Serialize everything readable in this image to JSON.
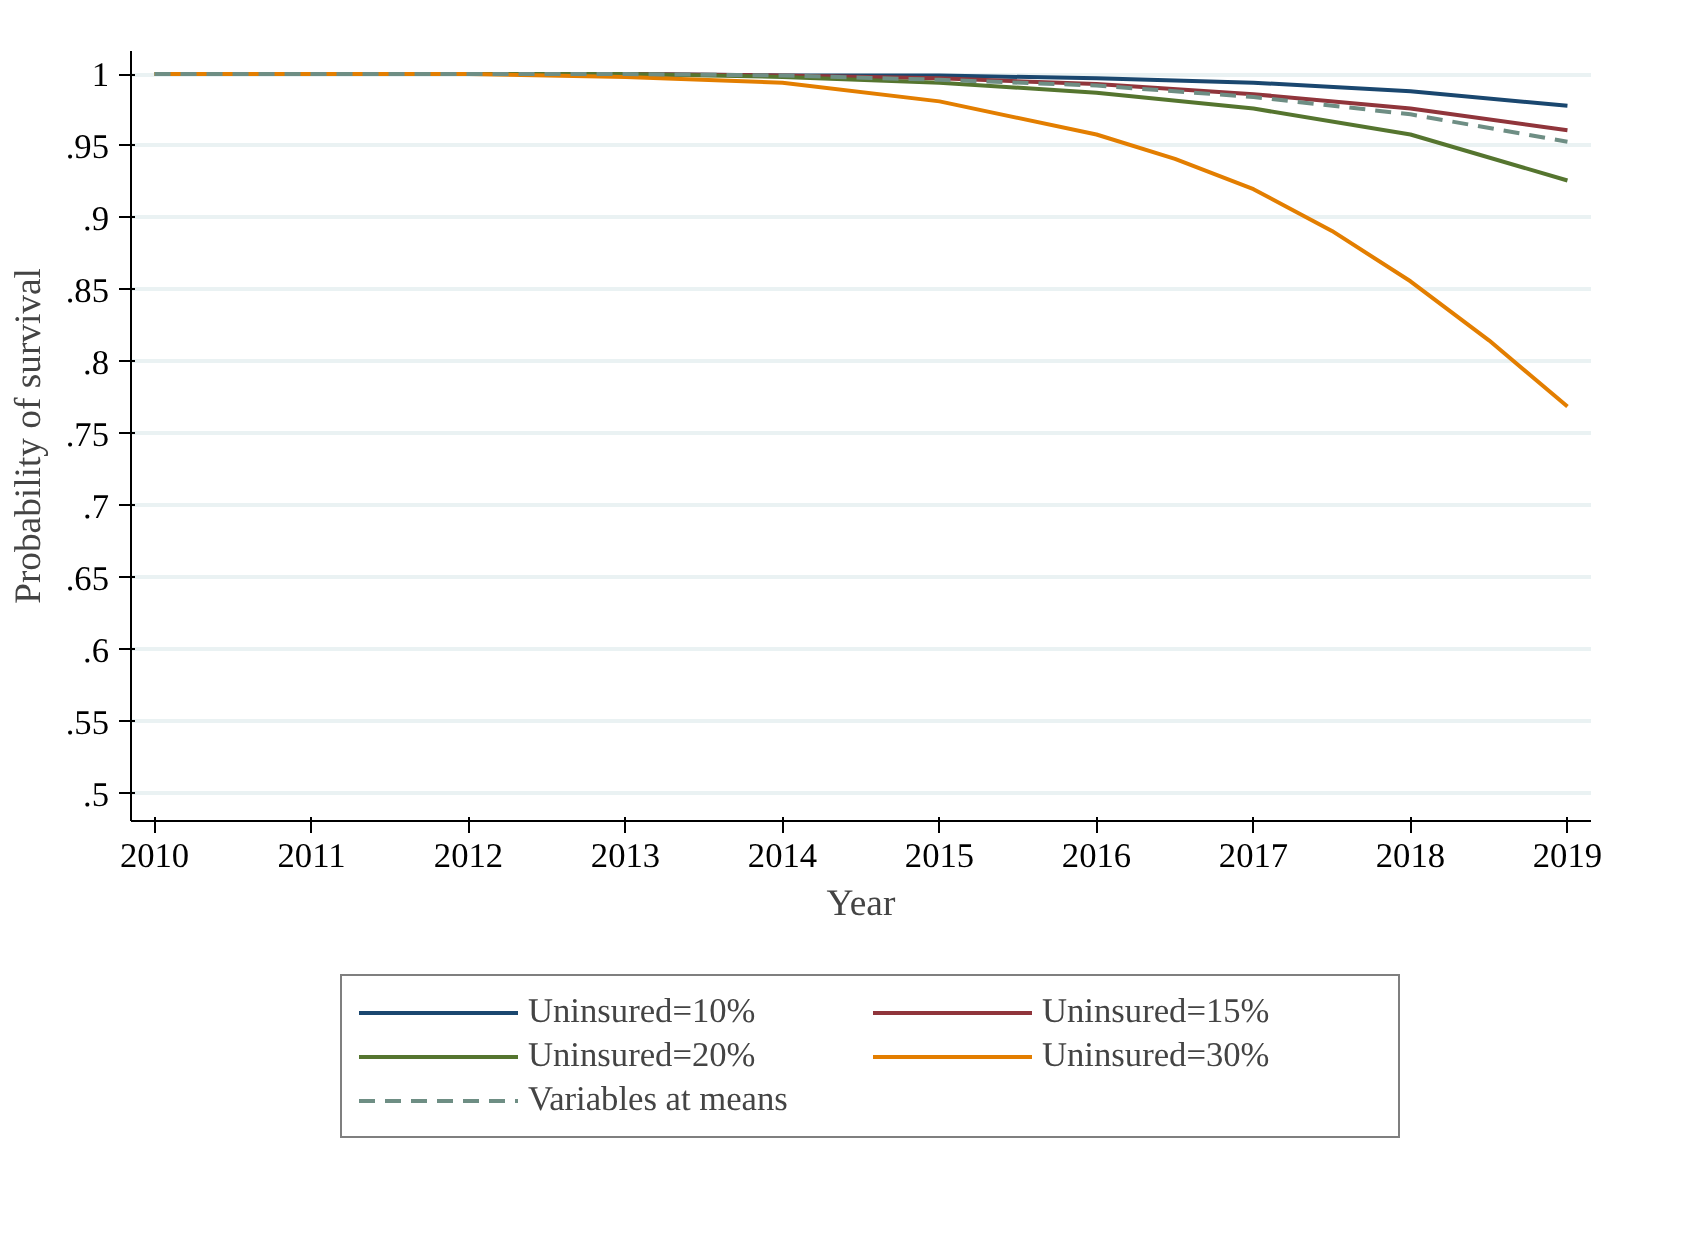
{
  "chart_data": {
    "type": "line",
    "xlabel": "Year",
    "ylabel": "Probability of survival",
    "x": [
      2010,
      2011,
      2012,
      2013,
      2014,
      2015,
      2016,
      2017,
      2018,
      2019
    ],
    "series": [
      {
        "name": "Uninsured=10%",
        "color": "#1a476f",
        "values": [
          null,
          null,
          1,
          1,
          0.999,
          0.999,
          0.997,
          0.994,
          0.988,
          0.978
        ]
      },
      {
        "name": "Uninsured=15%",
        "color": "#90353b",
        "values": [
          null,
          null,
          1,
          1,
          0.999,
          0.997,
          0.993,
          0.986,
          0.976,
          0.961
        ]
      },
      {
        "name": "Uninsured=20%",
        "color": "#55752f",
        "values": [
          1,
          1,
          1,
          1,
          0.998,
          0.994,
          0.987,
          0.976,
          0.958,
          0.926
        ]
      },
      {
        "name": "Uninsured=30%",
        "color": "#e37e00",
        "x": [
          2010,
          2011,
          2012,
          2013,
          2014,
          2015,
          2016,
          2016.5,
          2017,
          2017.5,
          2018,
          2018.5,
          2019
        ],
        "values": [
          1,
          1,
          1,
          0.998,
          0.994,
          0.981,
          0.958,
          0.941,
          0.92,
          0.891,
          0.856,
          0.815,
          0.769
        ]
      },
      {
        "name": "Variables at means",
        "color": "#6e8e84",
        "line_style": "dashed",
        "values": [
          1,
          1,
          1,
          1,
          0.999,
          0.996,
          0.992,
          0.984,
          0.972,
          0.953
        ]
      }
    ],
    "xlim": [
      2009.85,
      2019.15
    ],
    "ylim": [
      0.481,
      1.016
    ],
    "xticks": [
      2010,
      2011,
      2012,
      2013,
      2014,
      2015,
      2016,
      2017,
      2018,
      2019
    ],
    "yticks": [
      {
        "value": 0.5,
        "label": ".5"
      },
      {
        "value": 0.55,
        "label": ".55"
      },
      {
        "value": 0.6,
        "label": ".6"
      },
      {
        "value": 0.65,
        "label": ".65"
      },
      {
        "value": 0.7,
        "label": ".7"
      },
      {
        "value": 0.75,
        "label": ".75"
      },
      {
        "value": 0.8,
        "label": ".8"
      },
      {
        "value": 0.85,
        "label": ".85"
      },
      {
        "value": 0.9,
        "label": ".9"
      },
      {
        "value": 0.95,
        "label": ".95"
      },
      1
    ],
    "grid": "y",
    "legend": "bottom",
    "line_style": "solid",
    "marker": "none"
  }
}
